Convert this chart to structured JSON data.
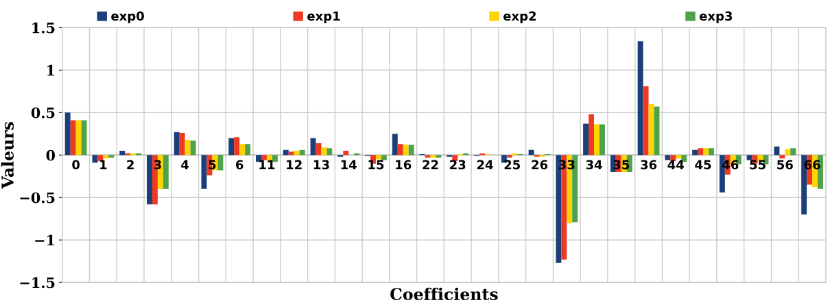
{
  "chart_data": {
    "type": "bar",
    "xlabel": "Coefficients",
    "ylabel": "Valeurs",
    "categories": [
      "0",
      "1",
      "2",
      "3",
      "4",
      "5",
      "6",
      "11",
      "12",
      "13",
      "14",
      "15",
      "16",
      "22",
      "23",
      "24",
      "25",
      "26",
      "33",
      "34",
      "35",
      "36",
      "44",
      "45",
      "46",
      "55",
      "56",
      "66"
    ],
    "series": [
      {
        "name": "exp0",
        "color": "#1a3f7a",
        "values": [
          0.5,
          -0.09,
          0.05,
          -0.58,
          0.27,
          -0.4,
          0.2,
          -0.08,
          0.06,
          0.2,
          -0.02,
          -0.01,
          0.25,
          0.01,
          -0.02,
          -0.01,
          -0.09,
          0.06,
          -1.27,
          0.37,
          -0.2,
          1.34,
          -0.06,
          0.06,
          -0.44,
          -0.06,
          0.1,
          -0.7
        ]
      },
      {
        "name": "exp1",
        "color": "#ee3a24",
        "values": [
          0.41,
          -0.07,
          0.02,
          -0.58,
          0.26,
          -0.24,
          0.21,
          -0.06,
          0.04,
          0.14,
          0.05,
          -0.1,
          0.13,
          -0.03,
          -0.07,
          0.02,
          -0.03,
          -0.02,
          -1.23,
          0.48,
          -0.2,
          0.81,
          -0.07,
          0.08,
          -0.23,
          -0.1,
          -0.04,
          -0.35
        ]
      },
      {
        "name": "exp2",
        "color": "#ffd400",
        "values": [
          0.41,
          -0.04,
          0.02,
          -0.4,
          0.18,
          -0.18,
          0.13,
          -0.09,
          0.05,
          0.09,
          0.0,
          -0.05,
          0.12,
          -0.03,
          0.01,
          0.01,
          0.02,
          -0.02,
          -0.8,
          0.36,
          -0.2,
          0.6,
          -0.04,
          0.08,
          -0.11,
          -0.07,
          0.07,
          -0.38
        ]
      },
      {
        "name": "exp3",
        "color": "#4ea24a",
        "values": [
          0.41,
          -0.03,
          0.02,
          -0.4,
          0.17,
          -0.18,
          0.13,
          -0.08,
          0.06,
          0.08,
          0.02,
          -0.06,
          0.12,
          -0.03,
          0.02,
          0.0,
          0.01,
          0.01,
          -0.79,
          0.36,
          -0.2,
          0.57,
          -0.08,
          0.08,
          -0.11,
          -0.11,
          0.08,
          -0.4
        ]
      }
    ],
    "ylim": [
      -1.5,
      1.5
    ],
    "yticks": [
      {
        "value": -1.5,
        "label": "−1.5"
      },
      {
        "value": -1,
        "label": "−1"
      },
      {
        "value": -0.5,
        "label": "−0.5"
      },
      0,
      0.5,
      1,
      1.5
    ],
    "grid": true,
    "legend": "top"
  }
}
